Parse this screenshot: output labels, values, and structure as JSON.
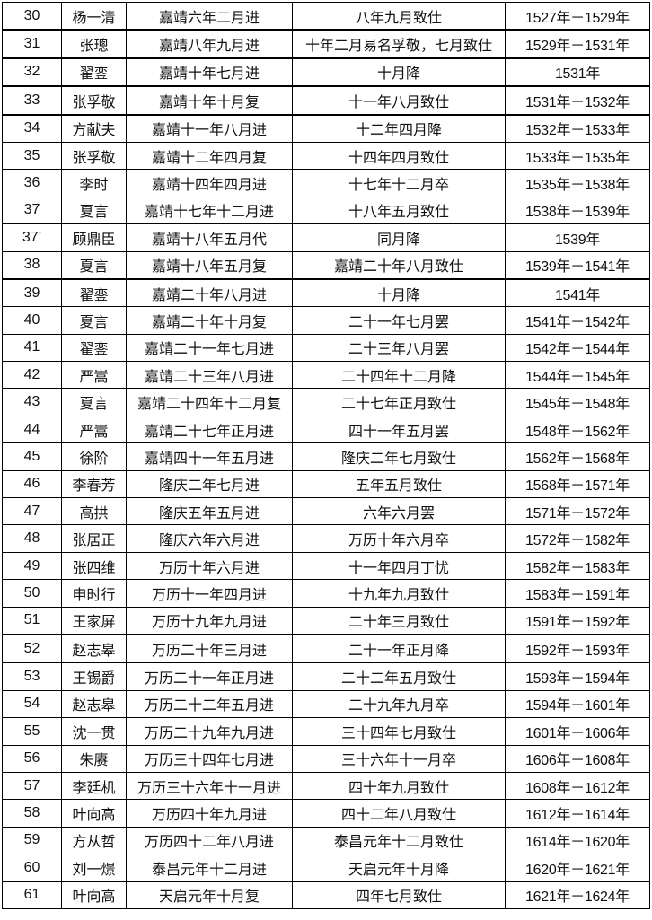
{
  "rows": [
    [
      "30",
      "杨一清",
      "嘉靖六年二月进",
      "八年九月致仕",
      "1527年－1529年"
    ],
    [
      "31",
      "张璁",
      "嘉靖八年九月进",
      "十年二月易名孚敬，七月致仕",
      "1529年－1531年"
    ],
    [
      "32",
      "翟銮",
      "嘉靖十年七月进",
      "十月降",
      "1531年"
    ],
    [
      "33",
      "张孚敬",
      "嘉靖十年十月复",
      "十一年八月致仕",
      "1531年－1532年"
    ],
    [
      "34",
      "方献夫",
      "嘉靖十一年八月进",
      "十二年四月降",
      "1532年－1533年"
    ],
    [
      "35",
      "张孚敬",
      "嘉靖十二年四月复",
      "十四年四月致仕",
      "1533年－1535年"
    ],
    [
      "36",
      "李时",
      "嘉靖十四年四月进",
      "十七年十二月卒",
      "1535年－1538年"
    ],
    [
      "37",
      "夏言",
      "嘉靖十七年十二月进",
      "十八年五月致仕",
      "1538年－1539年"
    ],
    [
      "37’",
      "顾鼎臣",
      "嘉靖十八年五月代",
      "同月降",
      "1539年"
    ],
    [
      "38",
      "夏言",
      "嘉靖十八年五月复",
      "嘉靖二十年八月致仕",
      "1539年－1541年"
    ],
    [
      "39",
      "翟銮",
      "嘉靖二十年八月进",
      "十月降",
      "1541年"
    ],
    [
      "40",
      "夏言",
      "嘉靖二十年十月复",
      "二十一年七月罢",
      "1541年－1542年"
    ],
    [
      "41",
      "翟銮",
      "嘉靖二十一年七月进",
      "二十三年八月罢",
      "1542年－1544年"
    ],
    [
      "42",
      "严嵩",
      "嘉靖二十三年八月进",
      "二十四年十二月降",
      "1544年－1545年"
    ],
    [
      "43",
      "夏言",
      "嘉靖二十四年十二月复",
      "二十七年正月致仕",
      "1545年－1548年"
    ],
    [
      "44",
      "严嵩",
      "嘉靖二十七年正月进",
      "四十一年五月罢",
      "1548年－1562年"
    ],
    [
      "45",
      "徐阶",
      "嘉靖四十一年五月进",
      "隆庆二年七月致仕",
      "1562年－1568年"
    ],
    [
      "46",
      "李春芳",
      "隆庆二年七月进",
      "五年五月致仕",
      "1568年－1571年"
    ],
    [
      "47",
      "高拱",
      "隆庆五年五月进",
      "六年六月罢",
      "1571年－1572年"
    ],
    [
      "48",
      "张居正",
      "隆庆六年六月进",
      "万历十年六月卒",
      "1572年－1582年"
    ],
    [
      "49",
      "张四维",
      "万历十年六月进",
      "十一年四月丁忧",
      "1582年－1583年"
    ],
    [
      "50",
      "申时行",
      "万历十一年四月进",
      "十九年九月致仕",
      "1583年－1591年"
    ],
    [
      "51",
      "王家屏",
      "万历十九年九月进",
      "二十年三月致仕",
      "1591年－1592年"
    ],
    [
      "52",
      "赵志皋",
      "万历二十年三月进",
      "二十一年正月降",
      "1592年－1593年"
    ],
    [
      "53",
      "王锡爵",
      "万历二十一年正月进",
      "二十二年五月致仕",
      "1593年－1594年"
    ],
    [
      "54",
      "赵志皋",
      "万历二十二年五月进",
      "二十九年九月卒",
      "1594年－1601年"
    ],
    [
      "55",
      "沈一贯",
      "万历二十九年九月进",
      "三十四年七月致仕",
      "1601年－1606年"
    ],
    [
      "56",
      "朱赓",
      "万历三十四年七月进",
      "三十六年十一月卒",
      "1606年－1608年"
    ],
    [
      "57",
      "李廷机",
      "万历三十六年十一月进",
      "四十年九月致仕",
      "1608年－1612年"
    ],
    [
      "58",
      "叶向高",
      "万历四十年九月进",
      "四十二年八月致仕",
      "1612年－1614年"
    ],
    [
      "59",
      "方从哲",
      "万历四十二年八月进",
      "泰昌元年十二月致仕",
      "1614年－1620年"
    ],
    [
      "60",
      "刘一燝",
      "泰昌元年十二月进",
      "天启元年十月降",
      "1620年－1621年"
    ],
    [
      "61",
      "叶向高",
      "天启元年十月复",
      "四年七月致仕",
      "1621年－1624年"
    ]
  ]
}
